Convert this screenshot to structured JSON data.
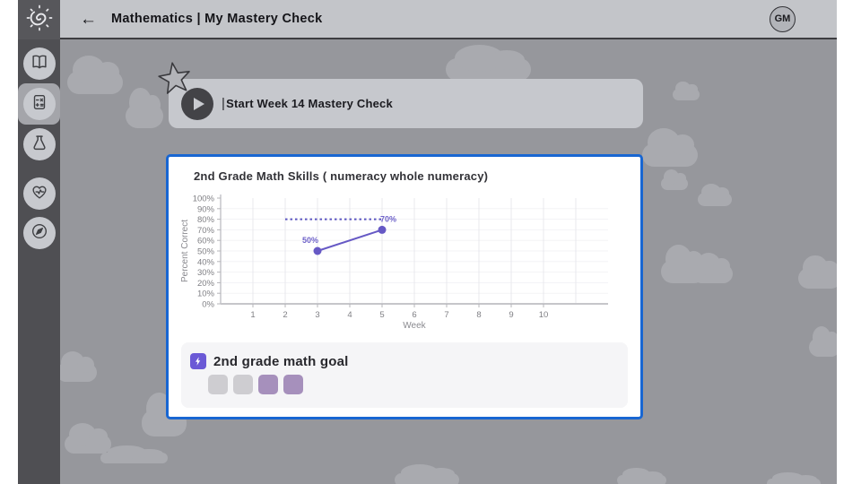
{
  "header": {
    "back_icon": "←",
    "title": "Mathematics | My Mastery Check",
    "avatar_initials": "GM"
  },
  "sidebar": {
    "logo_icon": "spiral-sun-logo",
    "items": [
      {
        "icon": "open-book-icon",
        "selected": false
      },
      {
        "icon": "calculator-icon",
        "selected": true
      },
      {
        "icon": "flask-icon",
        "selected": false
      },
      {
        "icon": "heart-pulse-icon",
        "selected": false
      },
      {
        "icon": "compass-icon",
        "selected": false
      }
    ]
  },
  "mastery_card": {
    "star_icon": "star-icon",
    "play_icon": "play-icon",
    "cursor_bar": "|",
    "label": "Start Week 14 Mastery Check"
  },
  "chart_data": {
    "type": "line",
    "title": "2nd Grade Math Skills ( numeracy whole numeracy)",
    "xlabel": "Week",
    "ylabel": "Percent Correct",
    "xlim": [
      0,
      12
    ],
    "ylim": [
      0,
      100
    ],
    "x_ticks": [
      1,
      2,
      3,
      4,
      5,
      6,
      7,
      8,
      9,
      10
    ],
    "y_ticks": [
      0,
      10,
      20,
      30,
      40,
      50,
      60,
      70,
      80,
      90,
      100
    ],
    "y_tick_suffix": "%",
    "grid": "vertical",
    "legend": "none",
    "series": [
      {
        "name": "mastery-check-scores",
        "color": "#6659c5",
        "points": [
          {
            "x": 3,
            "y": 50,
            "label": "50%"
          },
          {
            "x": 5,
            "y": 70,
            "label": "70%"
          }
        ]
      }
    ],
    "goal_line": {
      "y": 80,
      "x_start": 2,
      "x_end": 5,
      "style": "dotted",
      "color": "#5b55c0"
    }
  },
  "goal": {
    "bolt_icon": "lightning-bolt-icon",
    "title": "2nd grade math goal",
    "squares": [
      {
        "color": "#cecdd1"
      },
      {
        "color": "#cecdd1"
      },
      {
        "color": "#a690bc"
      },
      {
        "color": "#a690bc"
      }
    ]
  },
  "colors": {
    "highlight_border_blue": "#1866d2",
    "series_purple": "#6659c5",
    "bolt_purple": "#6b59d6"
  }
}
